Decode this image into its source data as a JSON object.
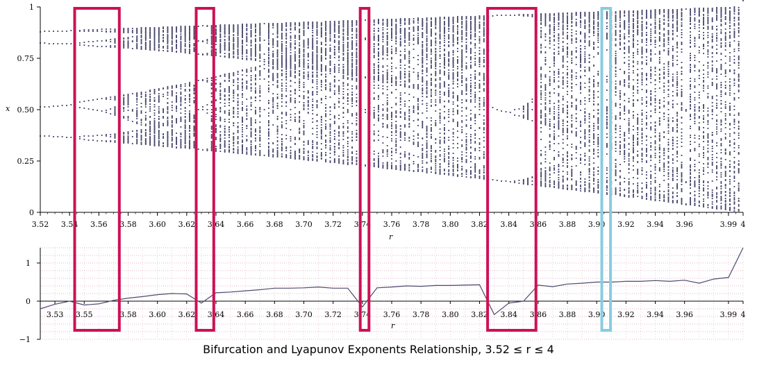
{
  "caption": "Bifurcation and Lyapunov Exponents Relationship, 3.52 ≤ r ≤ 4",
  "colors": {
    "points": "#4a4a6e",
    "line": "#4a4a6e",
    "highlight": "#cc1155",
    "highlight_alt": "#88cce0",
    "grid": "#bb4477"
  },
  "chart_data": [
    {
      "type": "scatter",
      "xlabel": "r",
      "ylabel": "x",
      "xlim": [
        3.52,
        4.0
      ],
      "ylim": [
        0,
        1
      ],
      "x_ticks": [
        "3.52",
        "3.54",
        "3.56",
        "3.58",
        "3.60",
        "3.62",
        "3.64",
        "3.66",
        "3.68",
        "3.70",
        "3.72",
        "3.74",
        "3.76",
        "3.78",
        "3.80",
        "3.82",
        "3.84",
        "3.86",
        "3.88",
        "3.90",
        "3.92",
        "3.94",
        "3.96",
        "3.99",
        "4"
      ],
      "x_tick_values": [
        3.52,
        3.54,
        3.56,
        3.58,
        3.6,
        3.62,
        3.64,
        3.66,
        3.68,
        3.7,
        3.72,
        3.74,
        3.76,
        3.78,
        3.8,
        3.82,
        3.84,
        3.86,
        3.88,
        3.9,
        3.92,
        3.94,
        3.96,
        3.99,
        4.0
      ],
      "y_ticks": [
        "0",
        "0.25",
        "0.50",
        "0.75",
        "1"
      ],
      "y_tick_values": [
        0,
        0.25,
        0.5,
        0.75,
        1
      ],
      "series_description": "logistic map x(n+1) = r x(n) (1 - x(n)) attractor points",
      "highlight_ranges": [
        {
          "r_range": [
            3.5435,
            3.574
          ],
          "color": "highlight"
        },
        {
          "r_range": [
            3.6265,
            3.6385
          ],
          "color": "highlight"
        },
        {
          "r_range": [
            3.7385,
            3.7445
          ],
          "color": "highlight"
        },
        {
          "r_range": [
            3.8255,
            3.8585
          ],
          "color": "highlight"
        },
        {
          "r_range": [
            3.9035,
            3.9095
          ],
          "color": "highlight_alt"
        }
      ]
    },
    {
      "type": "line",
      "xlabel": "r",
      "ylabel": "",
      "xlim": [
        3.52,
        4.0
      ],
      "ylim": [
        -1,
        1.4
      ],
      "x_ticks": [
        "3.53",
        "3.55",
        "3.58",
        "3.60",
        "3.62",
        "3.64",
        "3.66",
        "3.68",
        "3.70",
        "3.72",
        "3.74",
        "3.76",
        "3.78",
        "3.80",
        "3.82",
        "3.84",
        "3.86",
        "3.88",
        "3.90",
        "3.92",
        "3.94",
        "3.96",
        "3.99",
        "4"
      ],
      "x_tick_values": [
        3.53,
        3.55,
        3.58,
        3.6,
        3.62,
        3.64,
        3.66,
        3.68,
        3.7,
        3.72,
        3.74,
        3.76,
        3.78,
        3.8,
        3.82,
        3.84,
        3.86,
        3.88,
        3.9,
        3.92,
        3.94,
        3.96,
        3.99,
        4.0
      ],
      "y_ticks": [
        "−1",
        "0",
        "1"
      ],
      "y_tick_values": [
        -1,
        0,
        1
      ],
      "grid": true,
      "x": [
        3.52,
        3.53,
        3.54,
        3.55,
        3.56,
        3.57,
        3.58,
        3.59,
        3.6,
        3.61,
        3.62,
        3.63,
        3.64,
        3.65,
        3.66,
        3.67,
        3.68,
        3.69,
        3.7,
        3.71,
        3.72,
        3.73,
        3.74,
        3.75,
        3.76,
        3.77,
        3.78,
        3.79,
        3.8,
        3.81,
        3.82,
        3.83,
        3.84,
        3.85,
        3.86,
        3.87,
        3.88,
        3.89,
        3.9,
        3.91,
        3.92,
        3.93,
        3.94,
        3.95,
        3.96,
        3.97,
        3.98,
        3.99,
        4.0
      ],
      "y": [
        -0.2,
        -0.08,
        0.0,
        -0.1,
        -0.07,
        0.02,
        0.08,
        0.12,
        0.17,
        0.2,
        0.19,
        -0.05,
        0.22,
        0.24,
        0.27,
        0.3,
        0.34,
        0.34,
        0.35,
        0.37,
        0.34,
        0.34,
        -0.15,
        0.35,
        0.37,
        0.4,
        0.39,
        0.41,
        0.41,
        0.42,
        0.43,
        -0.35,
        -0.05,
        0.0,
        0.42,
        0.38,
        0.45,
        0.47,
        0.5,
        0.5,
        0.52,
        0.52,
        0.54,
        0.52,
        0.55,
        0.47,
        0.58,
        0.62,
        1.4
      ]
    }
  ]
}
